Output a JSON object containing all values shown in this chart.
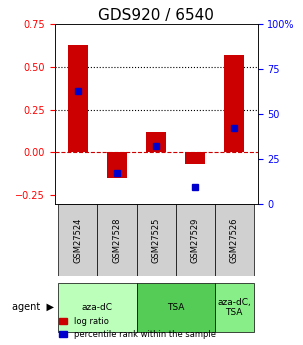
{
  "title": "GDS920 / 6540",
  "samples": [
    "GSM27524",
    "GSM27528",
    "GSM27525",
    "GSM27529",
    "GSM27526"
  ],
  "log_ratio": [
    0.63,
    -0.15,
    0.12,
    -0.07,
    0.57
  ],
  "percentile_rank": [
    0.63,
    0.17,
    0.32,
    0.09,
    0.42
  ],
  "bar_color": "#cc0000",
  "dot_color": "#0000cc",
  "ylim_left": [
    -0.3,
    0.75
  ],
  "ylim_right": [
    0,
    100
  ],
  "yticks_left": [
    -0.25,
    0.0,
    0.25,
    0.5,
    0.75
  ],
  "yticks_right": [
    0,
    25,
    50,
    75,
    100
  ],
  "hlines": [
    0.5,
    0.25
  ],
  "zero_line_color": "#cc0000",
  "dotted_line_color": "#000000",
  "agent_groups": [
    {
      "label": "aza-dC",
      "start": 0,
      "end": 2,
      "color": "#ccffcc"
    },
    {
      "label": "TSA",
      "start": 2,
      "end": 4,
      "color": "#66cc66"
    },
    {
      "label": "aza-dC,\nTSA",
      "start": 4,
      "end": 5,
      "color": "#99ee99"
    }
  ],
  "legend_log_ratio": "log ratio",
  "legend_percentile": "percentile rank within the sample",
  "agent_label": "agent",
  "bar_width": 0.5,
  "background_color": "#ffffff",
  "plot_bg_color": "#ffffff",
  "title_fontsize": 11,
  "tick_fontsize": 7,
  "label_fontsize": 7
}
